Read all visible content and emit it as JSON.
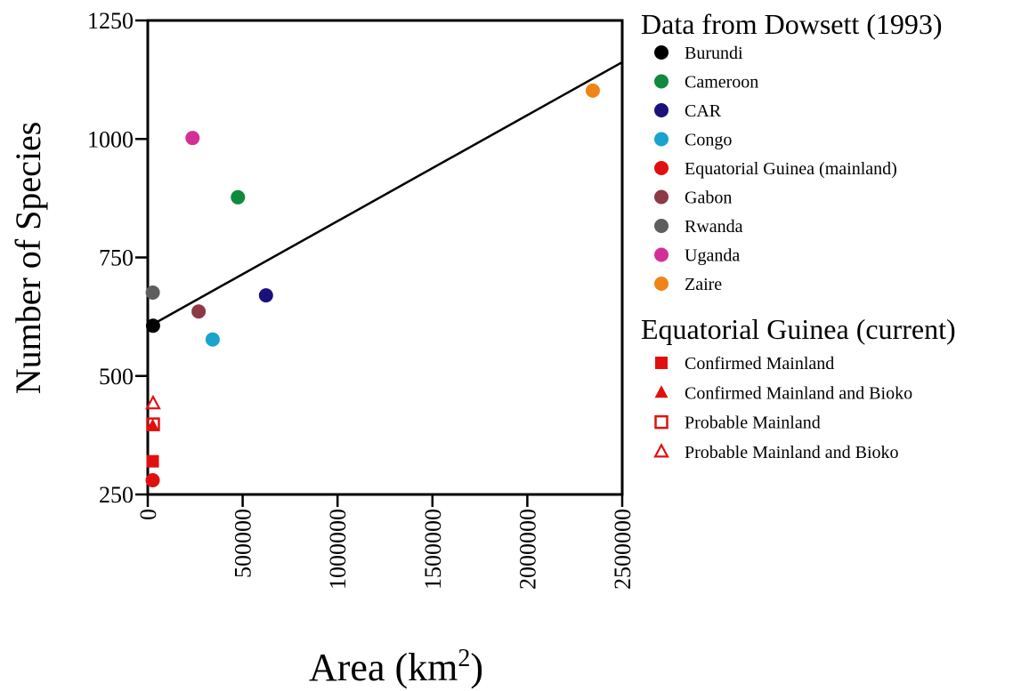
{
  "chart_data": {
    "type": "scatter",
    "xlabel": "Area (km",
    "xlabel_sup": "2",
    "xlabel_close": ")",
    "ylabel": "Number of Species",
    "xlim": [
      0,
      2500000
    ],
    "ylim": [
      250,
      1250
    ],
    "x_ticks": [
      0,
      500000,
      1000000,
      1500000,
      2000000,
      2500000
    ],
    "x_tick_labels": [
      "0",
      "500000",
      "1000000",
      "1500000",
      "2000000",
      "2500000"
    ],
    "y_ticks": [
      250,
      500,
      750,
      1000,
      1250
    ],
    "y_tick_labels": [
      "250",
      "500",
      "750",
      "1000",
      "1250"
    ],
    "grid": false,
    "legend_position": "right",
    "series": [
      {
        "name": "Burundi",
        "color": "#000000",
        "marker": "circle",
        "x": 27800,
        "y": 606
      },
      {
        "name": "Cameroon",
        "color": "#0f8a3e",
        "marker": "circle",
        "x": 475000,
        "y": 877
      },
      {
        "name": "CAR",
        "color": "#1a127a",
        "marker": "circle",
        "x": 623000,
        "y": 670
      },
      {
        "name": "Congo",
        "color": "#1aa3cc",
        "marker": "circle",
        "x": 342000,
        "y": 577
      },
      {
        "name": "Equatorial Guinea (mainland)",
        "color": "#e01010",
        "marker": "circle",
        "x": 26000,
        "y": 280
      },
      {
        "name": "Gabon",
        "color": "#8c3a44",
        "marker": "circle",
        "x": 268000,
        "y": 636
      },
      {
        "name": "Rwanda",
        "color": "#5e5e5e",
        "marker": "circle",
        "x": 26300,
        "y": 676
      },
      {
        "name": "Uganda",
        "color": "#d42f96",
        "marker": "circle",
        "x": 236000,
        "y": 1002
      },
      {
        "name": "Zaire",
        "color": "#ef8418",
        "marker": "circle",
        "x": 2345000,
        "y": 1102
      },
      {
        "name": "Confirmed Mainland",
        "color": "#e01010",
        "marker": "square-filled",
        "x": 26000,
        "y": 320
      },
      {
        "name": "Confirmed Mainland and Bioko",
        "color": "#e01010",
        "marker": "triangle-filled",
        "x": 26000,
        "y": 395
      },
      {
        "name": "Probable Mainland",
        "color": "#e01010",
        "marker": "square-open",
        "x": 28000,
        "y": 398
      },
      {
        "name": "Probable Mainland and Bioko",
        "color": "#e01010",
        "marker": "triangle-open",
        "x": 28000,
        "y": 442
      }
    ],
    "fit_line": {
      "x": [
        0,
        2500000
      ],
      "y": [
        603,
        1162
      ]
    },
    "legends": [
      {
        "title": "Data from Dowsett (1993)",
        "entries": [
          "Burundi",
          "Cameroon",
          "CAR",
          "Congo",
          "Equatorial Guinea (mainland)",
          "Gabon",
          "Rwanda",
          "Uganda",
          "Zaire"
        ]
      },
      {
        "title": "Equatorial Guinea (current)",
        "entries": [
          "Confirmed Mainland",
          "Confirmed Mainland and Bioko",
          "Probable Mainland",
          "Probable Mainland and Bioko"
        ]
      }
    ]
  }
}
